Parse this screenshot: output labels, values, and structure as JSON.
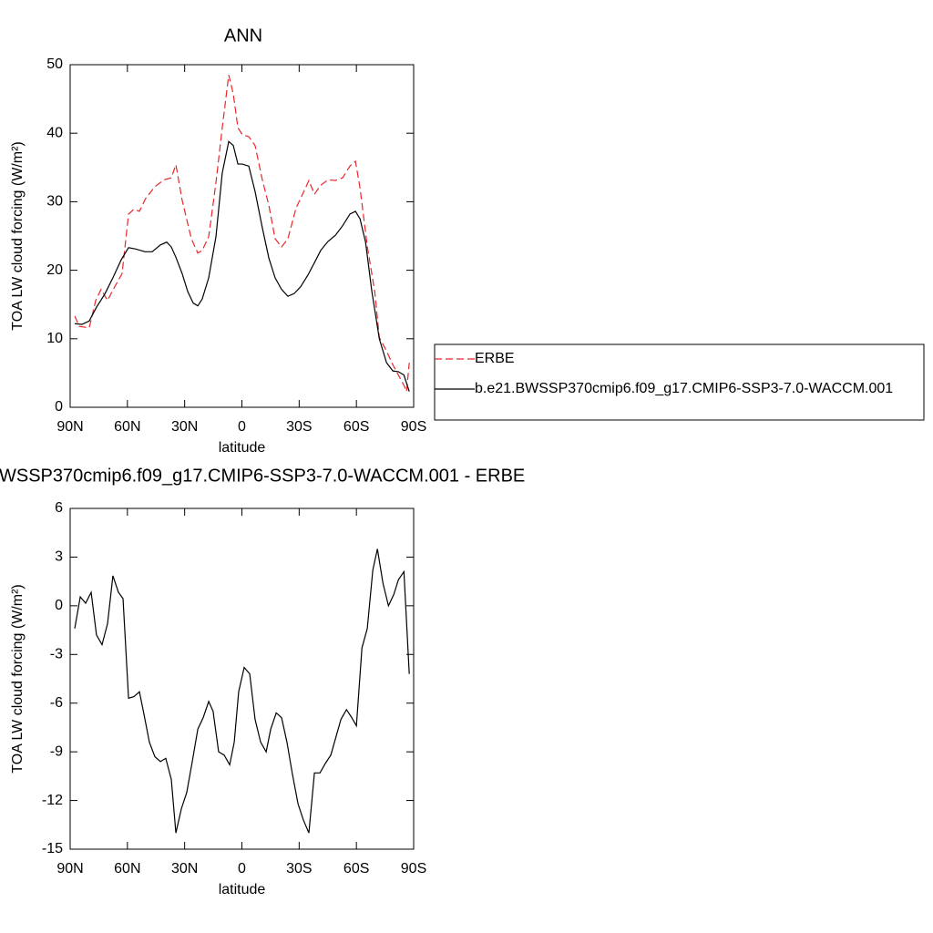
{
  "chart_data": [
    {
      "type": "line",
      "title": "ANN",
      "xlabel": "latitude",
      "ylabel": "TOA LW cloud forcing (W/m²)",
      "xlim": [
        90,
        -90
      ],
      "xticks": [
        {
          "value": 90,
          "label": "90N"
        },
        {
          "value": 60,
          "label": "60N"
        },
        {
          "value": 30,
          "label": "30N"
        },
        0,
        {
          "value": -30,
          "label": "30S"
        },
        {
          "value": -60,
          "label": "60S"
        },
        {
          "value": -90,
          "label": "90S"
        }
      ],
      "ylim": [
        0,
        50
      ],
      "yticks": [
        0,
        10,
        20,
        30,
        40,
        50
      ],
      "legend": "right",
      "series": [
        {
          "name": "ERBE",
          "color": "#e8262a",
          "line_style": "dashed",
          "x": [
            87.6,
            85.2,
            80,
            76.6,
            73.8,
            70.4,
            66.6,
            62.8,
            59.4,
            56.6,
            53.7,
            50.4,
            45.6,
            40.8,
            37,
            34.6,
            31.3,
            26.5,
            23.1,
            20.8,
            17.4,
            13.6,
            10.3,
            6.9,
            4.5,
            2.1,
            -0.2,
            -3.6,
            -6.9,
            -10.7,
            -14.1,
            -17.4,
            -20.8,
            -24.1,
            -28.4,
            -31.8,
            -35.1,
            -38,
            -41.3,
            -45.1,
            -49,
            -52.8,
            -56.6,
            -59.5,
            -61.9,
            -65.7,
            -69.6,
            -72,
            -75.8,
            -79.1,
            -82,
            -84.9,
            -86.3,
            -87.7
          ],
          "values": [
            13.3,
            11.8,
            11.6,
            15.6,
            17.2,
            15.6,
            17.6,
            19.5,
            28.2,
            28.9,
            28.6,
            30.5,
            32.2,
            33.2,
            33.5,
            35.4,
            30.2,
            24.6,
            22.5,
            22.9,
            24.9,
            32.8,
            40.8,
            48.5,
            45.7,
            40.8,
            39.8,
            39.5,
            38.2,
            33.2,
            29.5,
            24.6,
            23.4,
            24.6,
            29.1,
            31.1,
            33.1,
            31.1,
            32.4,
            33.2,
            33.1,
            33.5,
            35.2,
            35.9,
            32.0,
            23.5,
            16.9,
            10.2,
            8.2,
            6.2,
            4.7,
            3.2,
            2.3,
            6.5
          ]
        },
        {
          "name": "b.e21.BWSSP370cmip6.f09_g17.CMIP6-SSP3-7.0-WACCM.001",
          "color": "#000000",
          "line_style": "solid",
          "x": [
            87.6,
            83.8,
            80,
            76.2,
            71.9,
            67.6,
            63.3,
            59.4,
            55.6,
            50.8,
            47,
            42.7,
            39.4,
            37,
            34.6,
            31.3,
            28.4,
            25.5,
            23.1,
            20.8,
            17.4,
            13.6,
            10.3,
            6.9,
            4.5,
            2.1,
            -0.2,
            -3.6,
            -6.9,
            -10.7,
            -14.1,
            -17.4,
            -20.8,
            -24.1,
            -27.4,
            -30.8,
            -34.6,
            -38,
            -41.3,
            -45.1,
            -49,
            -52.8,
            -56.6,
            -59.5,
            -61.9,
            -64.8,
            -68.1,
            -72,
            -75.8,
            -79.1,
            -82,
            -84.9,
            -87.7
          ],
          "values": [
            12.2,
            12.1,
            12.6,
            14.6,
            16.5,
            18.9,
            21.5,
            23.3,
            23.1,
            22.7,
            22.7,
            23.7,
            24.1,
            23.4,
            21.9,
            19.5,
            16.9,
            15.2,
            14.8,
            15.8,
            18.9,
            24.9,
            34.2,
            38.8,
            38.2,
            35.5,
            35.5,
            35.2,
            31.5,
            26.2,
            21.8,
            18.9,
            17.2,
            16.2,
            16.6,
            17.6,
            19.3,
            21.1,
            22.9,
            24.2,
            25.1,
            26.5,
            28.2,
            28.6,
            27.5,
            24.1,
            16.9,
            10.0,
            6.5,
            5.3,
            5.2,
            4.7,
            2.3
          ]
        }
      ]
    },
    {
      "type": "line",
      "title": "WSSP370cmip6.f09_g17.CMIP6-SSP3-7.0-WACCM.001 - ERBE",
      "xlabel": "latitude",
      "ylabel": "TOA LW cloud forcing (W/m²)",
      "xlim": [
        90,
        -90
      ],
      "xticks": [
        {
          "value": 90,
          "label": "90N"
        },
        {
          "value": 60,
          "label": "60N"
        },
        {
          "value": 30,
          "label": "30N"
        },
        0,
        {
          "value": -30,
          "label": "30S"
        },
        {
          "value": -60,
          "label": "60S"
        },
        {
          "value": -90,
          "label": "90S"
        }
      ],
      "ylim": [
        -15,
        6
      ],
      "yticks": [
        -15,
        -12,
        -9,
        -6,
        -3,
        0,
        3,
        6
      ],
      "series": [
        {
          "color": "#000000",
          "line_style": "solid",
          "x": [
            87.6,
            84.7,
            81.9,
            79,
            76.2,
            73.3,
            70.4,
            67.6,
            64.7,
            62.3,
            59.4,
            56.6,
            53.7,
            51.3,
            48.5,
            45.6,
            42.7,
            39.9,
            37,
            34.6,
            31.7,
            28.9,
            26,
            23.1,
            20.3,
            17.4,
            15.1,
            12.2,
            9.3,
            6.4,
            4,
            1.7,
            -1.2,
            -4.1,
            -6.9,
            -9.8,
            -12.7,
            -15.1,
            -18,
            -20.8,
            -23.6,
            -26.5,
            -29.4,
            -32.2,
            -35.1,
            -38,
            -40.9,
            -43.8,
            -46.6,
            -49,
            -51.9,
            -54.8,
            -57.6,
            -60,
            -62.9,
            -65.7,
            -68.6,
            -71,
            -73.9,
            -76.8,
            -79.6,
            -82,
            -84.9,
            -87.7
          ],
          "values": [
            -1.4,
            0.55,
            0.16,
            0.83,
            -1.8,
            -2.4,
            -1.1,
            1.85,
            0.83,
            0.44,
            -5.7,
            -5.6,
            -5.3,
            -6.7,
            -8.4,
            -9.3,
            -9.6,
            -9.4,
            -10.7,
            -14.0,
            -12.5,
            -11.5,
            -9.6,
            -7.6,
            -6.9,
            -5.9,
            -6.5,
            -9.0,
            -9.2,
            -9.8,
            -8.4,
            -5.3,
            -3.8,
            -4.2,
            -7.0,
            -8.4,
            -9.0,
            -7.6,
            -6.6,
            -6.9,
            -8.4,
            -10.4,
            -12.2,
            -13.2,
            -14.0,
            -10.3,
            -10.3,
            -9.7,
            -9.2,
            -8.2,
            -7.0,
            -6.4,
            -6.9,
            -7.4,
            -2.6,
            -1.4,
            2.2,
            3.5,
            1.4,
            0.0,
            0.7,
            1.6,
            2.1,
            -4.2
          ]
        }
      ]
    }
  ]
}
